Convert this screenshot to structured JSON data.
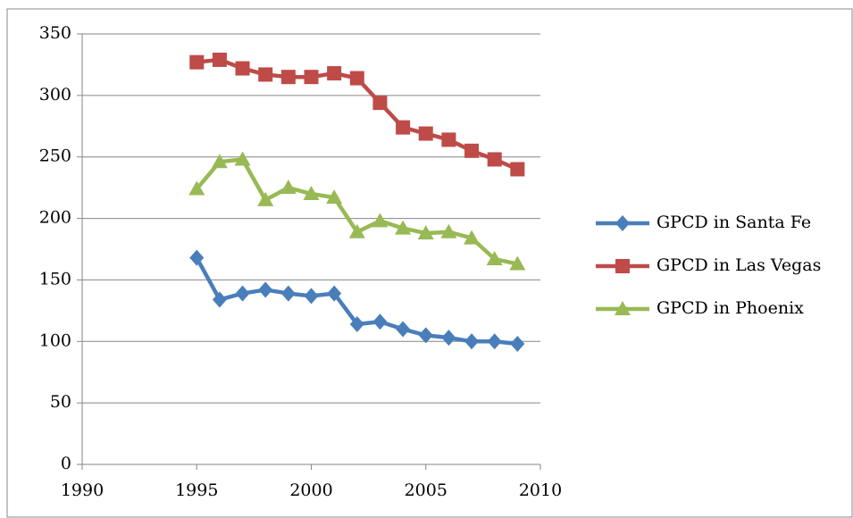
{
  "chart_data": {
    "type": "line",
    "x": [
      1995,
      1996,
      1997,
      1998,
      1999,
      2000,
      2001,
      2002,
      2003,
      2004,
      2005,
      2006,
      2007,
      2008,
      2009
    ],
    "series": [
      {
        "name": "GPCD in Santa Fe",
        "color": "#4a7ebb",
        "marker": "diamond",
        "values": [
          168,
          134,
          139,
          142,
          139,
          137,
          139,
          114,
          116,
          110,
          105,
          103,
          100,
          100,
          98
        ]
      },
      {
        "name": "GPCD in Las Vegas",
        "color": "#be4b48",
        "marker": "square",
        "values": [
          327,
          329,
          322,
          317,
          315,
          315,
          318,
          314,
          294,
          274,
          269,
          264,
          255,
          248,
          240
        ]
      },
      {
        "name": "GPCD in Phoenix",
        "color": "#98b954",
        "marker": "triangle",
        "values": [
          224,
          246,
          248,
          215,
          225,
          220,
          217,
          189,
          198,
          192,
          188,
          189,
          184,
          167,
          163
        ]
      }
    ],
    "xlim": [
      1990,
      2010
    ],
    "xticks": [
      1990,
      1995,
      2000,
      2005,
      2010
    ],
    "ylim": [
      0,
      350
    ],
    "yticks": [
      0,
      50,
      100,
      150,
      200,
      250,
      300,
      350
    ],
    "grid": true,
    "legend": "right"
  }
}
